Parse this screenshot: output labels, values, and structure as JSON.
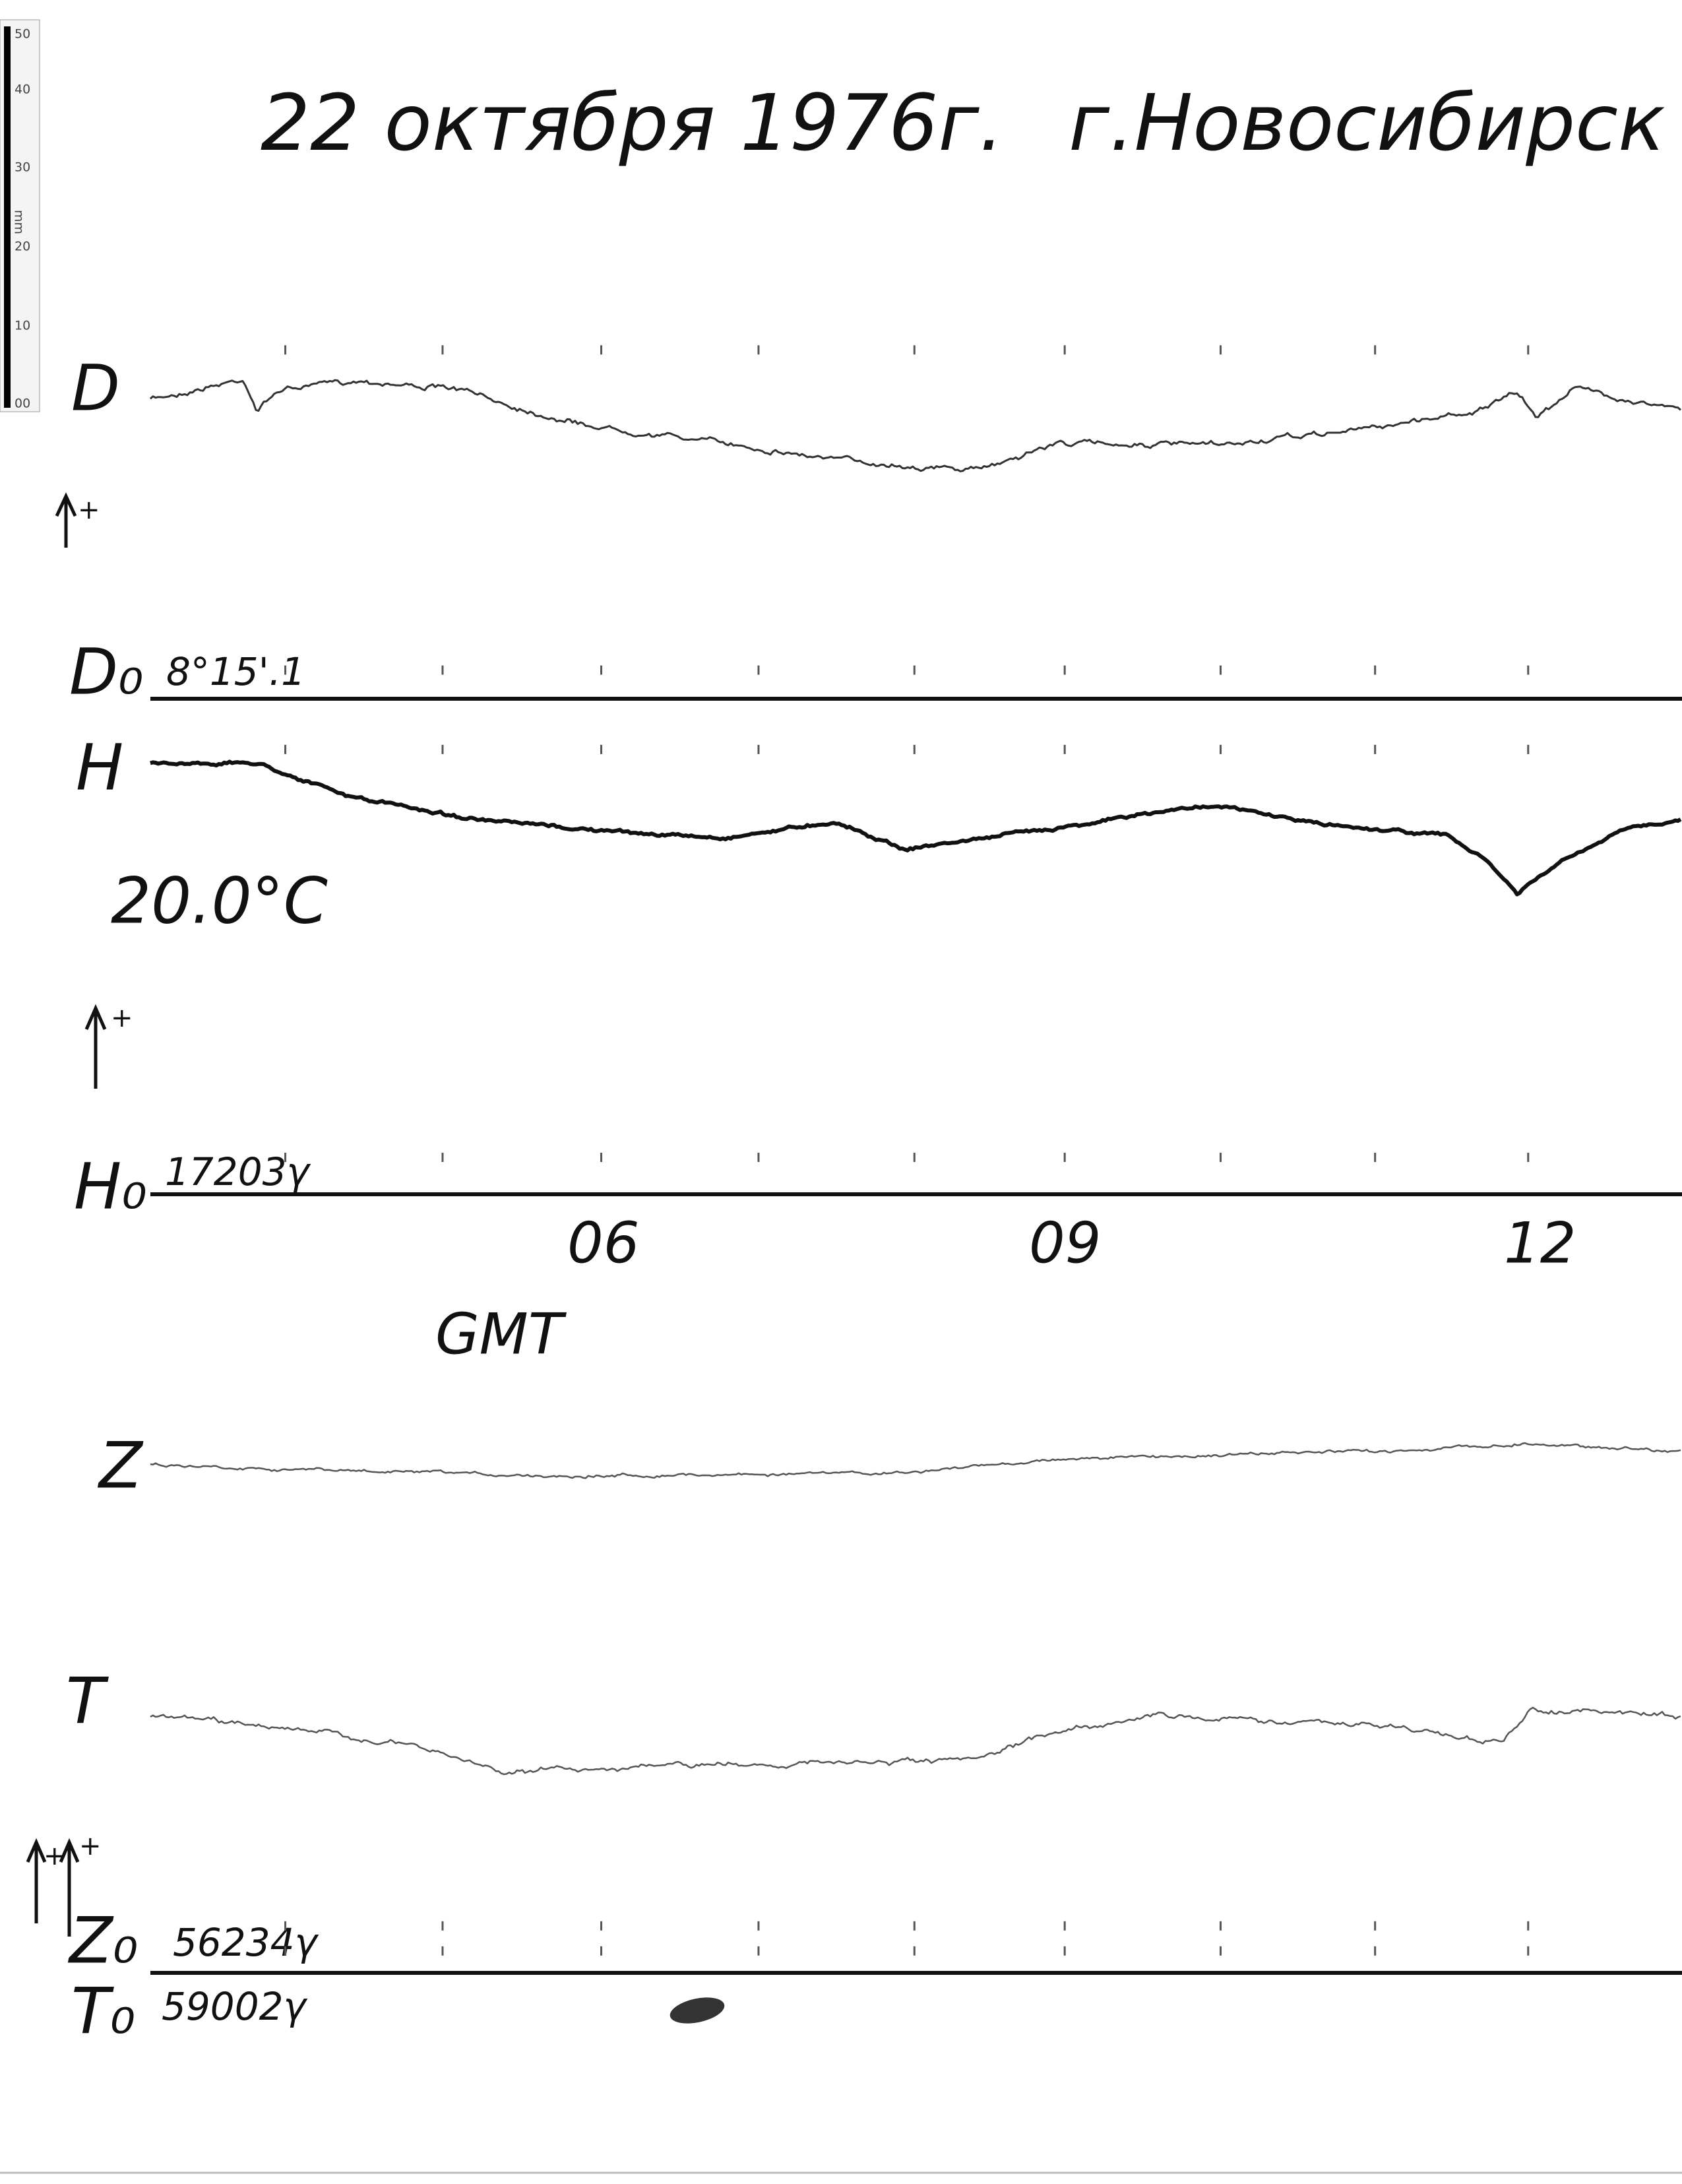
{
  "header": {
    "date": "22 октября 1976г.",
    "place": "г.Новосибирск (К"
  },
  "ruler": {
    "ticks": [
      "50",
      "40",
      "30",
      "20",
      "10",
      "00"
    ],
    "unit": "mm"
  },
  "traces": {
    "d": {
      "label": "D",
      "baseline_label": "D₀",
      "baseline_value": "8°15'.1",
      "sign": "+"
    },
    "h": {
      "label": "H",
      "temperature": "20.0°C",
      "baseline_label": "H₀",
      "baseline_value": "17203γ",
      "sign": "+"
    },
    "z": {
      "label": "Z",
      "baseline_label": "Z₀",
      "baseline_value": "56234γ",
      "sign": "+"
    },
    "t": {
      "label": "T",
      "baseline_label": "T₀",
      "baseline_value": "59002γ",
      "sign": "+"
    }
  },
  "time_axis": {
    "ticks": [
      "06",
      "09",
      "12"
    ],
    "label": "GMT"
  }
}
